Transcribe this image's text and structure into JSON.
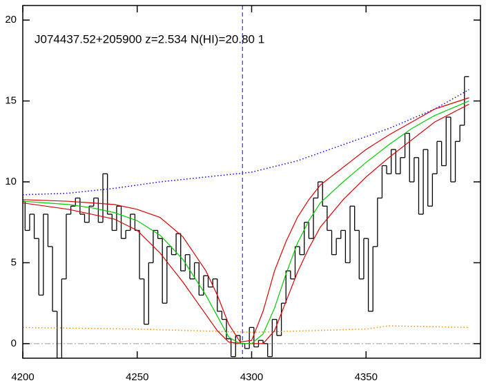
{
  "chart_data": {
    "type": "line",
    "title": "J074437.52+205900 z=2.534 N(HI)=20.80 1",
    "xlim": [
      4200,
      4400
    ],
    "ylim": [
      -0.9,
      20.9
    ],
    "xticks": [
      4200,
      4250,
      4300,
      4350
    ],
    "yticks": [
      0,
      5,
      10,
      15,
      20
    ],
    "hlines": [
      {
        "value": 0,
        "color": "#999999",
        "linestyle": "dashdot"
      }
    ],
    "vlines": [
      {
        "value": 4296,
        "color": "#0000ff",
        "linestyle": "dashed"
      }
    ],
    "series": [
      {
        "color": "#000000",
        "drawstyle": "steps",
        "linestyle": "solid",
        "x": [
          4200,
          4202,
          4204,
          4206,
          4208,
          4210,
          4212,
          4214,
          4216,
          4218,
          4220,
          4222,
          4224,
          4226,
          4228,
          4230,
          4232,
          4234,
          4236,
          4238,
          4240,
          4242,
          4244,
          4246,
          4248,
          4250,
          4252,
          4254,
          4256,
          4258,
          4260,
          4262,
          4264,
          4266,
          4268,
          4270,
          4272,
          4274,
          4276,
          4278,
          4280,
          4282,
          4284,
          4286,
          4288,
          4290,
          4292,
          4294,
          4296,
          4298,
          4300,
          4302,
          4304,
          4306,
          4308,
          4310,
          4312,
          4314,
          4316,
          4318,
          4320,
          4322,
          4324,
          4326,
          4328,
          4330,
          4332,
          4334,
          4336,
          4338,
          4340,
          4342,
          4344,
          4346,
          4348,
          4350,
          4352,
          4354,
          4356,
          4358,
          4360,
          4362,
          4364,
          4366,
          4368,
          4370,
          4372,
          4374,
          4376,
          4378,
          4380,
          4382,
          4384,
          4386,
          4388,
          4390,
          4392,
          4394
        ],
        "values": [
          8.8,
          7.0,
          8.0,
          6.5,
          3.0,
          8.0,
          6.0,
          2.0,
          -0.9,
          4.0,
          8.0,
          8.5,
          9.0,
          8.0,
          7.5,
          8.5,
          9.0,
          7.5,
          10.5,
          8.0,
          7.0,
          8.5,
          6.5,
          7.0,
          8.0,
          7.0,
          4.0,
          1.2,
          5.0,
          7.0,
          6.5,
          2.5,
          6.0,
          5.5,
          6.8,
          4.5,
          5.5,
          4.0,
          5.0,
          3.0,
          4.2,
          3.5,
          4.0,
          2.0,
          1.5,
          0.3,
          -0.8,
          0.5,
          0.0,
          -0.3,
          1.0,
          -0.2,
          0.2,
          0.0,
          -0.8,
          1.5,
          0.5,
          2.5,
          4.5,
          4.0,
          6.0,
          5.5,
          7.5,
          6.5,
          9.0,
          10.0,
          8.5,
          7.0,
          5.5,
          6.5,
          7.0,
          5.0,
          8.5,
          7.0,
          4.0,
          6.5,
          2.0,
          6.0,
          9.0,
          11.0,
          10.5,
          12.0,
          10.5,
          11.5,
          13.0,
          10.0,
          11.5,
          8.0,
          12.0,
          8.5,
          10.5,
          12.5,
          11.0,
          14.0,
          10.0,
          12.5,
          13.5,
          16.5
        ]
      },
      {
        "color": "#ff8c00",
        "drawstyle": "line",
        "linestyle": "dotted",
        "x": [
          4200,
          4250,
          4300,
          4350,
          4360,
          4395
        ],
        "values": [
          1.0,
          0.9,
          0.7,
          0.9,
          1.1,
          1.0
        ]
      },
      {
        "color": "#0000ff",
        "drawstyle": "line",
        "linestyle": "dotted",
        "x": [
          4200,
          4220,
          4240,
          4260,
          4280,
          4300,
          4320,
          4340,
          4360,
          4380,
          4395
        ],
        "values": [
          9.2,
          9.3,
          9.6,
          10.0,
          10.3,
          10.6,
          11.3,
          12.3,
          13.3,
          14.5,
          15.7
        ]
      },
      {
        "color": "#dd0000",
        "drawstyle": "line",
        "linestyle": "solid",
        "x": [
          4200,
          4220,
          4240,
          4250,
          4260,
          4270,
          4280,
          4285,
          4290,
          4295,
          4300,
          4305,
          4310,
          4315,
          4320,
          4325,
          4330,
          4340,
          4350,
          4360,
          4370,
          4380,
          4395
        ],
        "values": [
          8.9,
          8.8,
          8.6,
          8.3,
          7.8,
          6.6,
          4.5,
          3.0,
          1.2,
          0.1,
          0.2,
          2.0,
          4.5,
          6.3,
          7.8,
          8.9,
          9.8,
          10.9,
          12.0,
          12.9,
          13.7,
          14.5,
          15.2
        ]
      },
      {
        "color": "#dd0000",
        "drawstyle": "line",
        "linestyle": "solid",
        "x": [
          4200,
          4220,
          4240,
          4250,
          4260,
          4270,
          4280,
          4285,
          4290,
          4295,
          4300,
          4305,
          4310,
          4315,
          4320,
          4325,
          4330,
          4340,
          4350,
          4360,
          4370,
          4380,
          4395
        ],
        "values": [
          8.7,
          8.3,
          7.7,
          7.0,
          5.6,
          3.8,
          1.8,
          0.8,
          0.1,
          0,
          0,
          0,
          0.8,
          2.6,
          4.4,
          5.9,
          7.2,
          8.9,
          10.3,
          11.5,
          12.6,
          13.7,
          14.8
        ]
      },
      {
        "color": "#00cc00",
        "drawstyle": "line",
        "linestyle": "solid",
        "x": [
          4200,
          4210,
          4220,
          4230,
          4240,
          4250,
          4260,
          4270,
          4280,
          4285,
          4290,
          4295,
          4300,
          4305,
          4310,
          4315,
          4320,
          4325,
          4330,
          4340,
          4350,
          4360,
          4370,
          4380,
          4395
        ],
        "values": [
          8.8,
          8.7,
          8.6,
          8.4,
          8.1,
          7.6,
          6.7,
          5.2,
          3.0,
          1.7,
          0.4,
          0.0,
          0.0,
          0.6,
          2.2,
          4.3,
          6.2,
          7.6,
          8.7,
          10.0,
          11.2,
          12.3,
          13.3,
          14.1,
          15.0
        ]
      }
    ]
  }
}
